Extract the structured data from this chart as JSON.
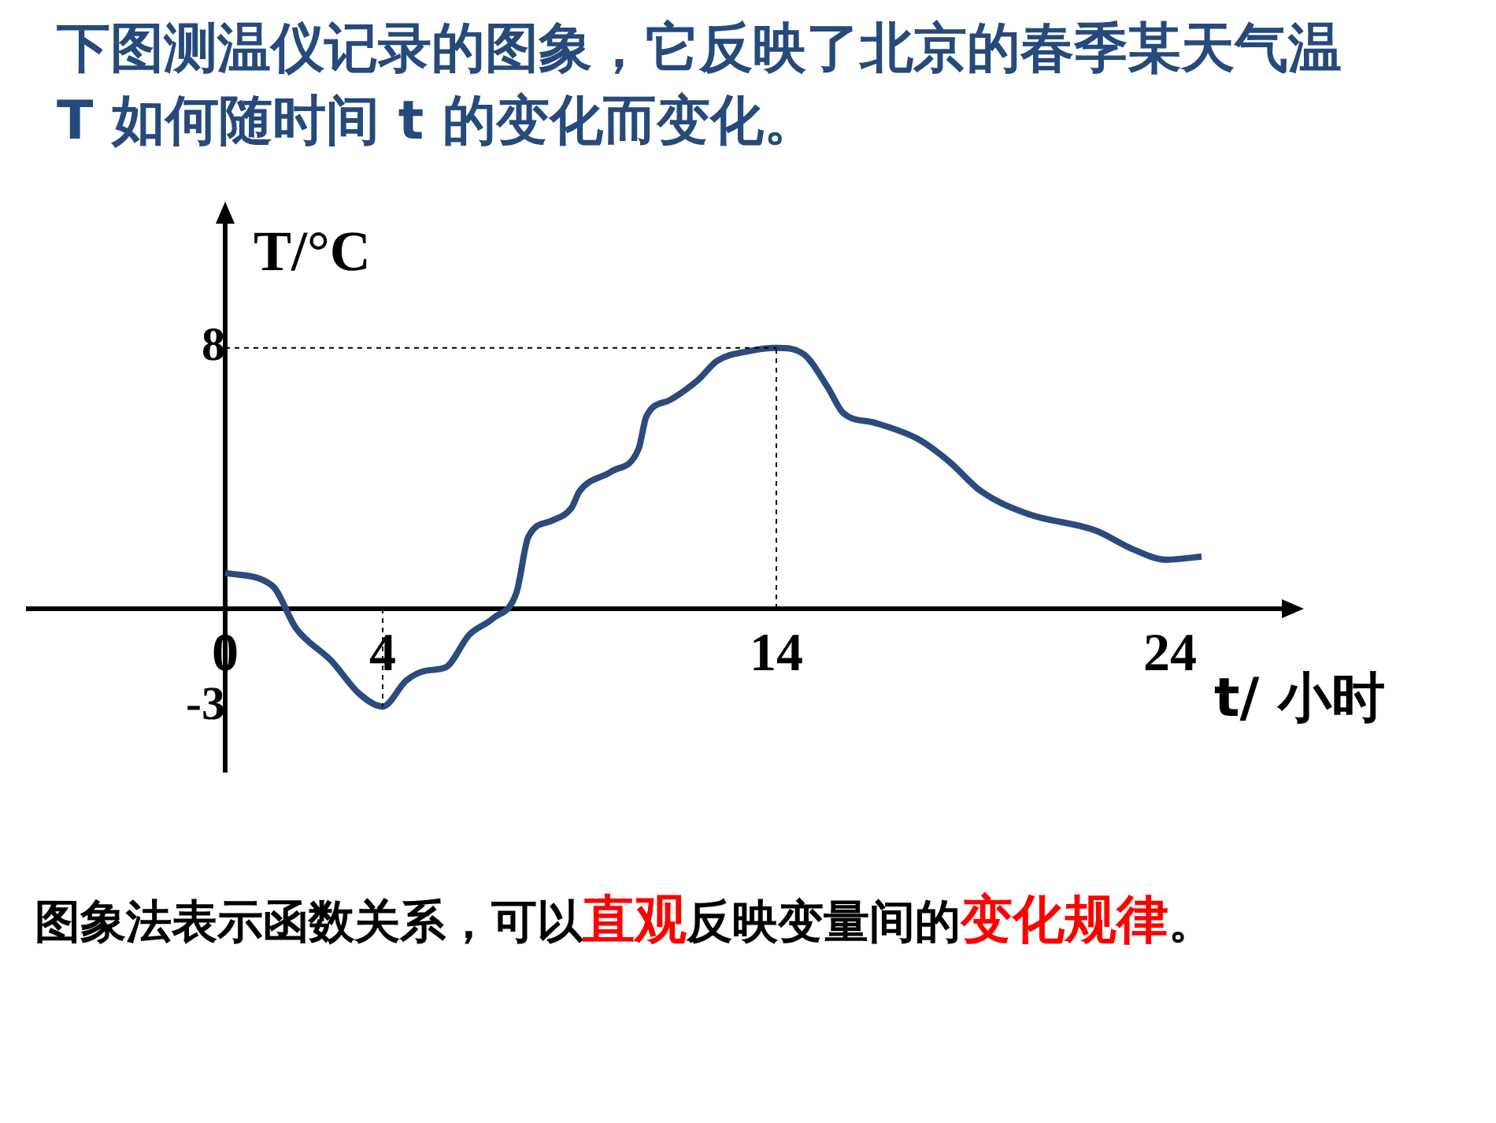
{
  "chart_data": {
    "type": "line",
    "title": "下图测温仪记录的图象，它反映了北京的春季某天气温 T 如何随时间 t 的变化而变化。",
    "xlabel": "t/ 小时",
    "ylabel": "T/°C",
    "annotations": [
      "图象法表示函数关系，可以",
      "直观",
      "反映变量间的",
      "变化规律",
      "。"
    ],
    "xlim": [
      -5,
      27
    ],
    "ylim": [
      -5,
      12
    ],
    "xticks": [
      0,
      4,
      14,
      24
    ],
    "yticks": [
      -3,
      8
    ],
    "grid": false,
    "legend": false,
    "marker": "none",
    "line_style": "solid",
    "ref_lines": [
      {
        "axis": "y",
        "value": 8,
        "line_style": "dashed"
      },
      {
        "axis": "x",
        "value": 14,
        "line_style": "dashed"
      },
      {
        "axis": "x",
        "value": 4,
        "line_style": "dashed"
      }
    ],
    "series": [
      {
        "color": "#2a4b7c",
        "x": [
          0,
          1.2,
          1.8,
          2.7,
          3.4,
          4,
          4.6,
          5.1,
          5.6,
          6.2,
          6.8,
          7.4,
          7.7,
          8.3,
          8.8,
          9.0,
          9.8,
          10.5,
          10.7,
          11.3,
          12.0,
          12.5,
          13.3,
          14,
          14.7,
          15.3,
          15.7,
          16.5,
          17.6,
          18.4,
          19.2,
          20.4,
          22.1,
          23.1,
          23.9,
          24.8
        ],
        "values": [
          1.1,
          0.7,
          -0.6,
          -1.6,
          -2.6,
          -3,
          -2.2,
          -1.9,
          -1.8,
          -0.8,
          -0.3,
          0.5,
          2.2,
          2.7,
          3.1,
          3.6,
          4.2,
          4.9,
          5.9,
          6.4,
          7.0,
          7.6,
          7.9,
          8,
          7.8,
          6.8,
          6.0,
          5.7,
          5.2,
          4.5,
          3.6,
          2.9,
          2.4,
          1.8,
          1.5,
          1.6
        ]
      }
    ]
  }
}
